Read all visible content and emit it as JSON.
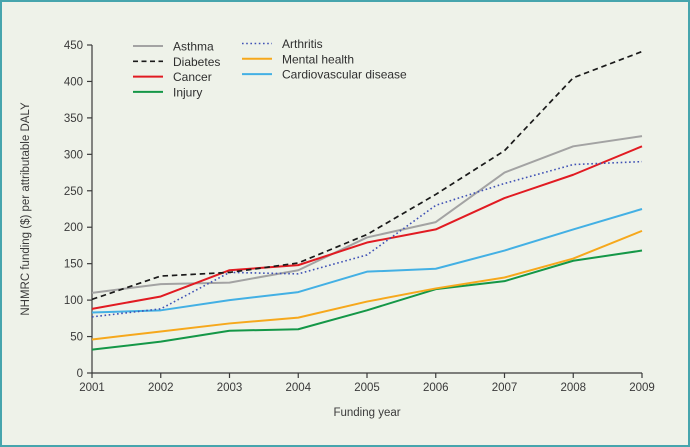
{
  "figure": {
    "background": "#eef2e9",
    "border_color": "#46a5ad",
    "text_color": "#3a3a3a"
  },
  "chart_data": {
    "type": "line",
    "x": [
      2001,
      2002,
      2003,
      2004,
      2005,
      2006,
      2007,
      2008,
      2009
    ],
    "xlabel": "Funding year",
    "ylabel": "NHMRC funding ($) per attributable DALY",
    "ylim": [
      0,
      450
    ],
    "ytick_step": 50,
    "yticks": [
      0,
      50,
      100,
      150,
      200,
      250,
      300,
      350,
      400,
      450
    ],
    "grid": false,
    "legend_position": "top-left, two columns, no frame",
    "series": [
      {
        "name": "Asthma",
        "color": "#a3a3a3",
        "style": "solid",
        "values": [
          110,
          122,
          124,
          141,
          186,
          207,
          275,
          311,
          325
        ]
      },
      {
        "name": "Diabetes",
        "color": "#1a1a1a",
        "style": "dashed",
        "values": [
          101,
          133,
          138,
          151,
          190,
          245,
          305,
          405,
          441
        ]
      },
      {
        "name": "Cancer",
        "color": "#e11b22",
        "style": "solid",
        "values": [
          88,
          105,
          141,
          148,
          179,
          197,
          240,
          272,
          311
        ]
      },
      {
        "name": "Injury",
        "color": "#149747",
        "style": "solid",
        "values": [
          32,
          43,
          58,
          60,
          86,
          115,
          126,
          154,
          168
        ]
      },
      {
        "name": "Arthritis",
        "color": "#3f51b5",
        "style": "dotted",
        "values": [
          77,
          88,
          138,
          136,
          162,
          230,
          260,
          286,
          290
        ]
      },
      {
        "name": "Mental health",
        "color": "#f6a81c",
        "style": "solid",
        "values": [
          46,
          57,
          68,
          76,
          98,
          116,
          131,
          157,
          195
        ]
      },
      {
        "name": "Cardiovascular disease",
        "color": "#43b0e4",
        "style": "solid",
        "values": [
          83,
          86,
          100,
          111,
          139,
          143,
          168,
          197,
          225
        ]
      }
    ],
    "legend_columns": [
      [
        "Asthma",
        "Diabetes",
        "Cancer",
        "Injury"
      ],
      [
        "Arthritis",
        "Mental health",
        "Cardiovascular disease"
      ]
    ]
  }
}
